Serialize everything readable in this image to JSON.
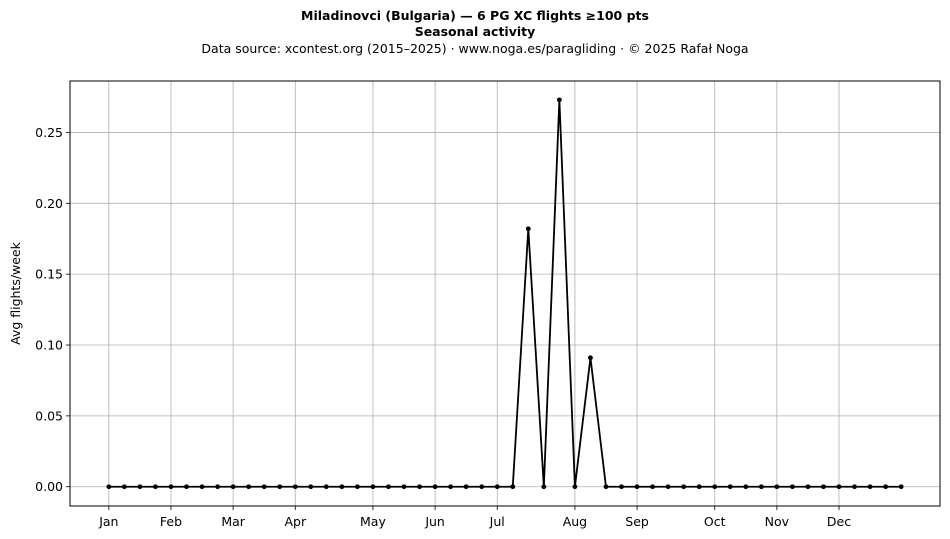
{
  "chart_data": {
    "type": "line",
    "title": "Miladinovci (Bulgaria)  —  6 PG XC flights ≥100 pts",
    "subtitle": "Seasonal activity",
    "source": "Data source: xcontest.org (2015–2025)  ·  www.noga.es/paragliding  ·  © 2025 Rafał Noga",
    "xlabel": "",
    "ylabel": "Avg flights/week",
    "ylim": [
      -0.0136,
      0.2863
    ],
    "yticks": [
      0.0,
      0.05,
      0.1,
      0.15,
      0.2,
      0.25
    ],
    "ytick_labels": [
      "0.00",
      "0.05",
      "0.10",
      "0.15",
      "0.20",
      "0.25"
    ],
    "xlim": [
      -2.5,
      53.5
    ],
    "xticks": [
      0,
      4,
      8,
      12,
      17,
      21,
      25,
      30,
      34,
      39,
      43,
      47
    ],
    "xtick_labels": [
      "Jan",
      "Feb",
      "Mar",
      "Apr",
      "May",
      "Jun",
      "Jul",
      "Aug",
      "Sep",
      "Oct",
      "Nov",
      "Dec"
    ],
    "grid": true,
    "color": "#000000",
    "series": [
      {
        "x": [
          0,
          1,
          2,
          3,
          4,
          5,
          6,
          7,
          8,
          9,
          10,
          11,
          12,
          13,
          14,
          15,
          16,
          17,
          18,
          19,
          20,
          21,
          22,
          23,
          24,
          25,
          26,
          27,
          28,
          29,
          30,
          31,
          32,
          33,
          34,
          35,
          36,
          37,
          38,
          39,
          40,
          41,
          42,
          43,
          44,
          45,
          46,
          47,
          48,
          49,
          50,
          51
        ],
        "values": [
          0,
          0,
          0,
          0,
          0,
          0,
          0,
          0,
          0,
          0,
          0,
          0,
          0,
          0,
          0,
          0,
          0,
          0,
          0,
          0,
          0,
          0,
          0,
          0,
          0,
          0,
          0,
          0.182,
          0,
          0.273,
          0,
          0.091,
          0,
          0,
          0,
          0,
          0,
          0,
          0,
          0,
          0,
          0,
          0,
          0,
          0,
          0,
          0,
          0,
          0,
          0,
          0,
          0
        ]
      }
    ]
  }
}
